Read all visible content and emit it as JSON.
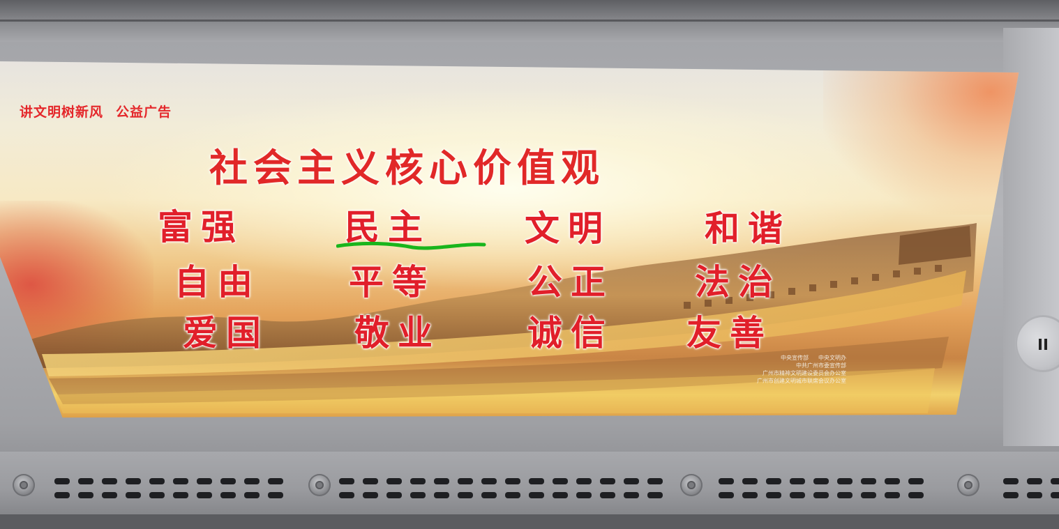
{
  "header_tag": {
    "slogan": "讲文明树新风",
    "label": "公益广告"
  },
  "title": "社会主义核心价值观",
  "value_rows": [
    [
      "富强",
      "民主",
      "文明",
      "和谐"
    ],
    [
      "自由",
      "平等",
      "公正",
      "法治"
    ],
    [
      "爱国",
      "敬业",
      "诚信",
      "友善"
    ]
  ],
  "highlighted_value": "民主",
  "highlight_color": "#19b51c",
  "text_color": "#e11f2a",
  "credits": [
    [
      "中央宣传部",
      "中央文明办"
    ],
    [
      "中共广州市委宣传部"
    ],
    [
      "广州市精神文明建设委员会办公室"
    ],
    [
      "广州市创建文明城市联席会议办公室"
    ]
  ]
}
